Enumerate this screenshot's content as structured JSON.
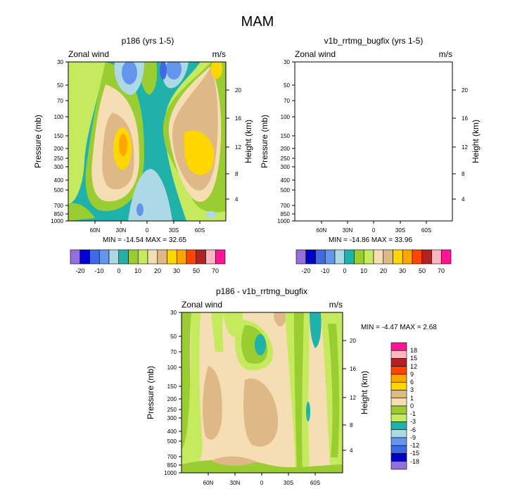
{
  "figure_title": "MAM",
  "chart_data": [
    {
      "type": "contour",
      "title": "p186 (yrs 1-5)",
      "left_label": "Zonal wind",
      "right_label": "m/s",
      "ylabel": "Pressure (mb)",
      "ylabel_right": "Height (km)",
      "yticks": [
        "30",
        "50",
        "70",
        "100",
        "150",
        "200",
        "250",
        "300",
        "400",
        "500",
        "700",
        "850",
        "1000"
      ],
      "height_ticks": [
        "20",
        "16",
        "12",
        "8",
        "4"
      ],
      "xticks": [
        "60N",
        "30N",
        "0",
        "30S",
        "60S"
      ],
      "stats": "MIN = -14.54  MAX =  32.65",
      "colorbar_labels": [
        "-20",
        "-10",
        "0",
        "10",
        "20",
        "30",
        "50",
        "70"
      ]
    },
    {
      "type": "contour",
      "title": "v1b_rrtmg_bugfix (yrs 1-5)",
      "left_label": "Zonal wind",
      "right_label": "m/s",
      "ylabel": "Pressure (mb)",
      "ylabel_right": "Height (km)",
      "yticks": [
        "30",
        "50",
        "70",
        "100",
        "150",
        "200",
        "250",
        "300",
        "400",
        "500",
        "700",
        "850",
        "1000"
      ],
      "height_ticks": [
        "20",
        "16",
        "12",
        "8",
        "4"
      ],
      "xticks": [
        "60N",
        "30N",
        "0",
        "30S",
        "60S"
      ],
      "stats": "MIN = -14.86  MAX =  33.96",
      "colorbar_labels": [
        "-20",
        "-10",
        "0",
        "10",
        "20",
        "30",
        "50",
        "70"
      ]
    },
    {
      "type": "contour",
      "title": "p186 - v1b_rrtmg_bugfix",
      "left_label": "Zonal wind",
      "right_label": "m/s",
      "ylabel": "Pressure (mb)",
      "ylabel_right": "Height (km)",
      "yticks": [
        "30",
        "50",
        "70",
        "100",
        "150",
        "200",
        "250",
        "300",
        "400",
        "500",
        "700",
        "850",
        "1000"
      ],
      "height_ticks": [
        "20",
        "16",
        "12",
        "8",
        "4"
      ],
      "xticks": [
        "60N",
        "30N",
        "0",
        "30S",
        "60S"
      ],
      "stats": "MIN = -4.47  MAX =  2.68",
      "colorbar_labels": [
        "18",
        "15",
        "12",
        "9",
        "6",
        "3",
        "1",
        "0",
        "-1",
        "-3",
        "-6",
        "-9",
        "-12",
        "-15",
        "-18"
      ]
    }
  ],
  "colors": {
    "panel_levels": [
      "#9370db",
      "#0000cd",
      "#4169e1",
      "#6495ed",
      "#add8e6",
      "#20b2aa",
      "#9acd32",
      "#c5ea5e",
      "#f5deb3",
      "#deb887",
      "#ffd700",
      "#ffa500",
      "#ff4500",
      "#b22222",
      "#ffb6c1",
      "#ff1493"
    ],
    "diff_levels": [
      "#ff1493",
      "#ffb6c1",
      "#b22222",
      "#ff4500",
      "#ffa500",
      "#ffd700",
      "#deb887",
      "#f5deb3",
      "#9acd32",
      "#c5ea5e",
      "#20b2aa",
      "#add8e6",
      "#6495ed",
      "#4169e1",
      "#0000cd",
      "#9370db"
    ]
  }
}
